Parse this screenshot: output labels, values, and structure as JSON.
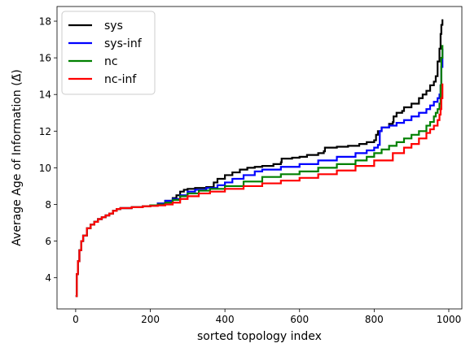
{
  "chart_data": {
    "type": "line",
    "title": "",
    "xlabel": "sorted topology index",
    "ylabel": "Average Age of Information (Δ̄)",
    "xlim": [
      -50,
      1035
    ],
    "ylim": [
      2.3,
      18.8
    ],
    "xticks": [
      0,
      200,
      400,
      600,
      800,
      1000
    ],
    "yticks": [
      4,
      6,
      8,
      10,
      12,
      14,
      16,
      18
    ],
    "xtick_labels": [
      "0",
      "200",
      "400",
      "600",
      "800",
      "1000"
    ],
    "ytick_labels": [
      "4",
      "6",
      "8",
      "10",
      "12",
      "14",
      "16",
      "18"
    ],
    "grid": false,
    "legend_position": "top-left",
    "series": [
      {
        "name": "sys",
        "color": "#000000",
        "x": [
          0,
          3,
          6,
          10,
          15,
          20,
          30,
          40,
          50,
          60,
          70,
          80,
          90,
          100,
          110,
          120,
          150,
          180,
          200,
          220,
          240,
          260,
          270,
          280,
          290,
          300,
          320,
          350,
          370,
          380,
          400,
          420,
          440,
          460,
          480,
          500,
          530,
          550,
          552,
          580,
          600,
          620,
          650,
          665,
          668,
          700,
          730,
          760,
          780,
          800,
          805,
          810,
          820,
          840,
          850,
          852,
          860,
          875,
          880,
          900,
          920,
          930,
          940,
          950,
          960,
          965,
          970,
          975,
          978,
          980,
          983
        ],
        "values": [
          3.0,
          4.2,
          4.9,
          5.5,
          6.0,
          6.3,
          6.7,
          6.9,
          7.05,
          7.2,
          7.3,
          7.4,
          7.5,
          7.65,
          7.75,
          7.8,
          7.85,
          7.9,
          7.95,
          8.05,
          8.2,
          8.35,
          8.5,
          8.7,
          8.8,
          8.85,
          8.9,
          8.95,
          9.2,
          9.4,
          9.6,
          9.75,
          9.9,
          10.0,
          10.05,
          10.1,
          10.2,
          10.3,
          10.5,
          10.55,
          10.6,
          10.7,
          10.8,
          10.9,
          11.1,
          11.15,
          11.2,
          11.3,
          11.4,
          11.5,
          11.8,
          12.0,
          12.2,
          12.4,
          12.5,
          12.8,
          13.0,
          13.1,
          13.3,
          13.5,
          13.8,
          14.0,
          14.2,
          14.5,
          14.7,
          15.0,
          15.8,
          16.5,
          17.3,
          17.8,
          18.1
        ]
      },
      {
        "name": "sys-inf",
        "color": "#0000ff",
        "x": [
          0,
          3,
          6,
          10,
          15,
          20,
          30,
          40,
          50,
          60,
          70,
          80,
          90,
          100,
          110,
          120,
          150,
          180,
          200,
          220,
          240,
          260,
          280,
          300,
          320,
          350,
          380,
          400,
          420,
          450,
          480,
          500,
          550,
          600,
          650,
          700,
          750,
          780,
          800,
          810,
          815,
          820,
          840,
          860,
          880,
          900,
          920,
          940,
          950,
          960,
          970,
          975,
          978,
          980,
          983
        ],
        "values": [
          3.0,
          4.2,
          4.9,
          5.5,
          6.0,
          6.3,
          6.7,
          6.9,
          7.05,
          7.2,
          7.3,
          7.4,
          7.5,
          7.65,
          7.75,
          7.8,
          7.85,
          7.9,
          7.95,
          8.05,
          8.2,
          8.3,
          8.5,
          8.7,
          8.8,
          8.9,
          9.05,
          9.2,
          9.4,
          9.6,
          9.8,
          9.9,
          10.05,
          10.2,
          10.4,
          10.6,
          10.8,
          10.95,
          11.1,
          11.25,
          12.0,
          12.2,
          12.3,
          12.45,
          12.6,
          12.8,
          13.0,
          13.2,
          13.4,
          13.6,
          13.8,
          14.0,
          14.5,
          15.5,
          16.5
        ]
      },
      {
        "name": "nc",
        "color": "#008000",
        "x": [
          0,
          3,
          6,
          10,
          15,
          20,
          30,
          40,
          50,
          60,
          70,
          80,
          90,
          100,
          110,
          120,
          150,
          180,
          200,
          220,
          240,
          260,
          280,
          300,
          330,
          360,
          400,
          450,
          500,
          550,
          600,
          650,
          700,
          750,
          780,
          800,
          820,
          840,
          860,
          880,
          900,
          920,
          940,
          950,
          960,
          965,
          970,
          975,
          978,
          980,
          983
        ],
        "values": [
          3.0,
          4.2,
          4.9,
          5.5,
          6.0,
          6.3,
          6.7,
          6.9,
          7.05,
          7.2,
          7.3,
          7.4,
          7.5,
          7.65,
          7.75,
          7.8,
          7.85,
          7.9,
          7.95,
          8.0,
          8.1,
          8.25,
          8.45,
          8.6,
          8.75,
          8.85,
          9.0,
          9.25,
          9.5,
          9.65,
          9.8,
          10.0,
          10.2,
          10.4,
          10.6,
          10.8,
          11.0,
          11.2,
          11.4,
          11.6,
          11.8,
          12.0,
          12.3,
          12.5,
          12.8,
          13.0,
          13.2,
          13.5,
          14.5,
          16.0,
          16.7
        ]
      },
      {
        "name": "nc-inf",
        "color": "#ff0000",
        "x": [
          0,
          3,
          6,
          10,
          15,
          20,
          30,
          40,
          50,
          60,
          70,
          80,
          90,
          100,
          110,
          120,
          150,
          180,
          200,
          220,
          240,
          260,
          280,
          300,
          330,
          360,
          400,
          450,
          500,
          550,
          600,
          650,
          700,
          750,
          800,
          850,
          880,
          900,
          920,
          940,
          950,
          960,
          970,
          975,
          978,
          980,
          983
        ],
        "values": [
          3.0,
          4.2,
          4.9,
          5.5,
          6.0,
          6.3,
          6.7,
          6.9,
          7.05,
          7.2,
          7.3,
          7.4,
          7.5,
          7.65,
          7.75,
          7.8,
          7.85,
          7.9,
          7.92,
          7.95,
          8.0,
          8.1,
          8.3,
          8.45,
          8.6,
          8.7,
          8.85,
          9.0,
          9.15,
          9.3,
          9.45,
          9.65,
          9.85,
          10.1,
          10.4,
          10.8,
          11.1,
          11.3,
          11.6,
          11.9,
          12.1,
          12.3,
          12.6,
          12.9,
          13.2,
          13.8,
          14.6
        ]
      }
    ]
  }
}
